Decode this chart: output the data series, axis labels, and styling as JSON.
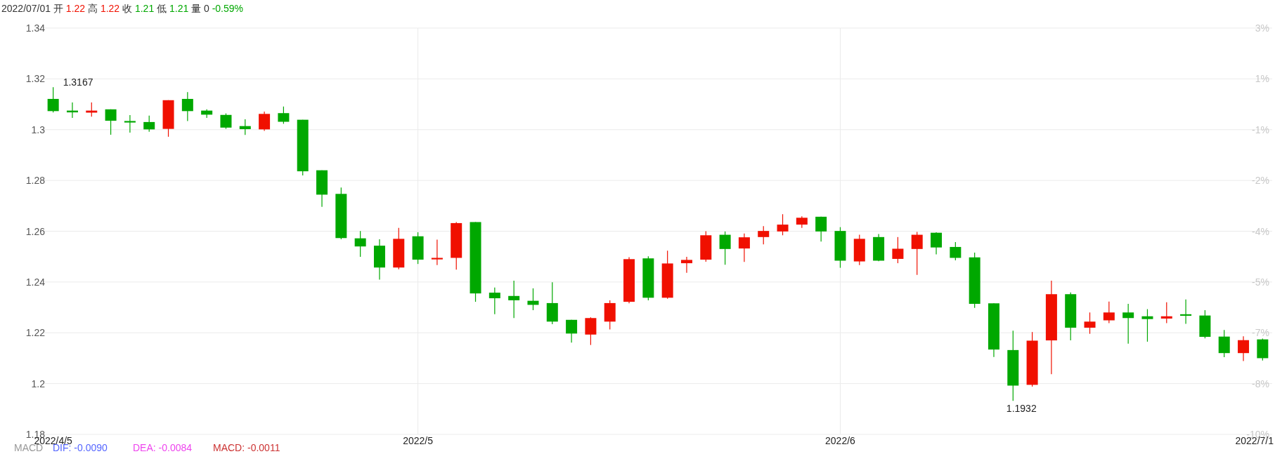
{
  "chart_data": {
    "type": "candlestick",
    "title": "2022/07/01 开 1.22 高 1.22 收 1.21 低 1.21 量 0 -0.59%",
    "annotations": [
      {
        "text": "1.3167",
        "x": "2022/4/5",
        "y": 1.3167
      },
      "1.1932",
      "MACD",
      "DIF: -0.0090",
      "DEA: -0.0084",
      "MACD: -0.0011"
    ],
    "categories": [
      "2022/4/5",
      null,
      null,
      null,
      null,
      null,
      null,
      null,
      null,
      null,
      null,
      null,
      null,
      null,
      null,
      null,
      null,
      null,
      null,
      "2022/5",
      null,
      null,
      null,
      null,
      null,
      null,
      null,
      null,
      null,
      null,
      null,
      null,
      null,
      null,
      null,
      null,
      null,
      null,
      null,
      null,
      null,
      "2022/6",
      null,
      null,
      null,
      null,
      null,
      null,
      null,
      null,
      null,
      null,
      null,
      null,
      null,
      null,
      null,
      null,
      null,
      null,
      null,
      null,
      null,
      "2022/7/1"
    ],
    "ohlc": [
      [
        1.3121,
        1.3167,
        1.3068,
        1.3073
      ],
      [
        1.3075,
        1.3107,
        1.3046,
        1.3068
      ],
      [
        1.3067,
        1.3107,
        1.3051,
        1.3075
      ],
      [
        1.308,
        1.308,
        1.298,
        1.3035
      ],
      [
        1.3034,
        1.3057,
        1.2988,
        1.3028
      ],
      [
        1.303,
        1.3055,
        1.2992,
        1.3001
      ],
      [
        1.3003,
        1.3116,
        1.2972,
        1.3116
      ],
      [
        1.3121,
        1.3148,
        1.3034,
        1.3073
      ],
      [
        1.3075,
        1.308,
        1.3046,
        1.3059
      ],
      [
        1.3058,
        1.3064,
        1.3003,
        1.3008
      ],
      [
        1.3014,
        1.3041,
        1.2979,
        1.3002
      ],
      [
        1.3001,
        1.3071,
        1.2995,
        1.3062
      ],
      [
        1.3065,
        1.3091,
        1.3023,
        1.3031
      ],
      [
        1.3039,
        1.3039,
        1.282,
        1.2836
      ],
      [
        1.284,
        1.284,
        1.2696,
        1.2744
      ],
      [
        1.2747,
        1.2772,
        1.2568,
        1.2573
      ],
      [
        1.2572,
        1.2601,
        1.2499,
        1.254
      ],
      [
        1.2543,
        1.2568,
        1.2409,
        1.2457
      ],
      [
        1.2457,
        1.2613,
        1.245,
        1.257
      ],
      [
        1.258,
        1.2596,
        1.2471,
        1.2488
      ],
      [
        1.2489,
        1.2567,
        1.2467,
        1.2495
      ],
      [
        1.2495,
        1.2636,
        1.2449,
        1.2632
      ],
      [
        1.2636,
        1.2636,
        1.2322,
        1.2355
      ],
      [
        1.2358,
        1.2378,
        1.2273,
        1.2336
      ],
      [
        1.2345,
        1.2405,
        1.2258,
        1.2328
      ],
      [
        1.2326,
        1.2375,
        1.2289,
        1.231
      ],
      [
        1.2317,
        1.2399,
        1.2234,
        1.2244
      ],
      [
        1.2251,
        1.2251,
        1.2161,
        1.2197
      ],
      [
        1.2193,
        1.2261,
        1.2152,
        1.2258
      ],
      [
        1.2244,
        1.2328,
        1.2213,
        1.2317
      ],
      [
        1.2322,
        1.2498,
        1.2316,
        1.249
      ],
      [
        1.2493,
        1.2501,
        1.2328,
        1.2338
      ],
      [
        1.2338,
        1.2523,
        1.2334,
        1.2473
      ],
      [
        1.2474,
        1.2499,
        1.2436,
        1.2487
      ],
      [
        1.2488,
        1.26,
        1.248,
        1.2584
      ],
      [
        1.2586,
        1.2599,
        1.2468,
        1.253
      ],
      [
        1.2532,
        1.2591,
        1.2479,
        1.2576
      ],
      [
        1.2577,
        1.262,
        1.2548,
        1.2601
      ],
      [
        1.2599,
        1.2667,
        1.2584,
        1.2626
      ],
      [
        1.2626,
        1.2659,
        1.2613,
        1.2653
      ],
      [
        1.2657,
        1.2657,
        1.2559,
        1.2599
      ],
      [
        1.2601,
        1.2616,
        1.2456,
        1.2484
      ],
      [
        1.2481,
        1.2586,
        1.2467,
        1.257
      ],
      [
        1.2577,
        1.2589,
        1.2482,
        1.2484
      ],
      [
        1.2491,
        1.2577,
        1.2474,
        1.2531
      ],
      [
        1.253,
        1.2597,
        1.2428,
        1.2586
      ],
      [
        1.2594,
        1.2596,
        1.2509,
        1.2536
      ],
      [
        1.2538,
        1.2557,
        1.2485,
        1.2495
      ],
      [
        1.2497,
        1.2516,
        1.2298,
        1.2314
      ],
      [
        1.2316,
        1.2316,
        1.2105,
        1.2134
      ],
      [
        1.2132,
        1.2208,
        1.1932,
        1.1992
      ],
      [
        1.1995,
        1.2203,
        1.1988,
        1.2169
      ],
      [
        1.217,
        1.2405,
        1.2037,
        1.2352
      ],
      [
        1.2352,
        1.2359,
        1.217,
        1.222
      ],
      [
        1.222,
        1.228,
        1.2196,
        1.2244
      ],
      [
        1.2249,
        1.2323,
        1.2238,
        1.228
      ],
      [
        1.228,
        1.2314,
        1.2157,
        1.2258
      ],
      [
        1.2265,
        1.2293,
        1.2165,
        1.2254
      ],
      [
        1.2256,
        1.232,
        1.2238,
        1.2265
      ],
      [
        1.2273,
        1.2331,
        1.2235,
        1.2267
      ],
      [
        1.2268,
        1.2289,
        1.2178,
        1.2184
      ],
      [
        1.2185,
        1.2211,
        1.2104,
        1.212
      ],
      [
        1.212,
        1.2186,
        1.2089,
        1.2171
      ],
      [
        1.2174,
        1.2177,
        1.2091,
        1.21
      ]
    ],
    "colors": [
      "#00a800",
      "#00a800",
      "#f01000",
      "#00a800",
      "#00a800",
      "#00a800",
      "#f01000",
      "#00a800",
      "#00a800",
      "#00a800",
      "#00a800",
      "#f01000",
      "#00a800",
      "#00a800",
      "#00a800",
      "#00a800",
      "#00a800",
      "#00a800",
      "#f01000",
      "#00a800",
      "#f01000",
      "#f01000",
      "#00a800",
      "#00a800",
      "#00a800",
      "#00a800",
      "#00a800",
      "#00a800",
      "#f01000",
      "#f01000",
      "#f01000",
      "#00a800",
      "#f01000",
      "#f01000",
      "#f01000",
      "#00a800",
      "#f01000",
      "#f01000",
      "#f01000",
      "#f01000",
      "#00a800",
      "#00a800",
      "#f01000",
      "#00a800",
      "#f01000",
      "#f01000",
      "#00a800",
      "#00a800",
      "#00a800",
      "#00a800",
      "#00a800",
      "#f01000",
      "#f01000",
      "#00a800",
      "#f01000",
      "#f01000",
      "#00a800",
      "#00a800",
      "#f01000",
      "#00a800",
      "#00a800",
      "#00a800",
      "#f01000",
      "#00a800"
    ],
    "ylim": [
      1.18,
      1.34
    ],
    "yticks": [
      1.18,
      1.2,
      1.22,
      1.24,
      1.26,
      1.28,
      1.3,
      1.32,
      1.34
    ],
    "y2lim": [
      -9.7,
      2.54
    ],
    "y2ticks": [
      {
        "value": -9.7,
        "label": "-10%"
      },
      {
        "value": -8.17,
        "label": "-8%"
      },
      {
        "value": -6.64,
        "label": "-7%"
      },
      {
        "value": -5.11,
        "label": "-5%"
      },
      {
        "value": -3.58,
        "label": "-4%"
      },
      {
        "value": -2.05,
        "label": "-2%"
      },
      {
        "value": -0.52,
        "label": "-1%"
      },
      {
        "value": 1.01,
        "label": "1%"
      },
      {
        "value": 2.54,
        "label": "3%"
      }
    ],
    "grid": true
  }
}
